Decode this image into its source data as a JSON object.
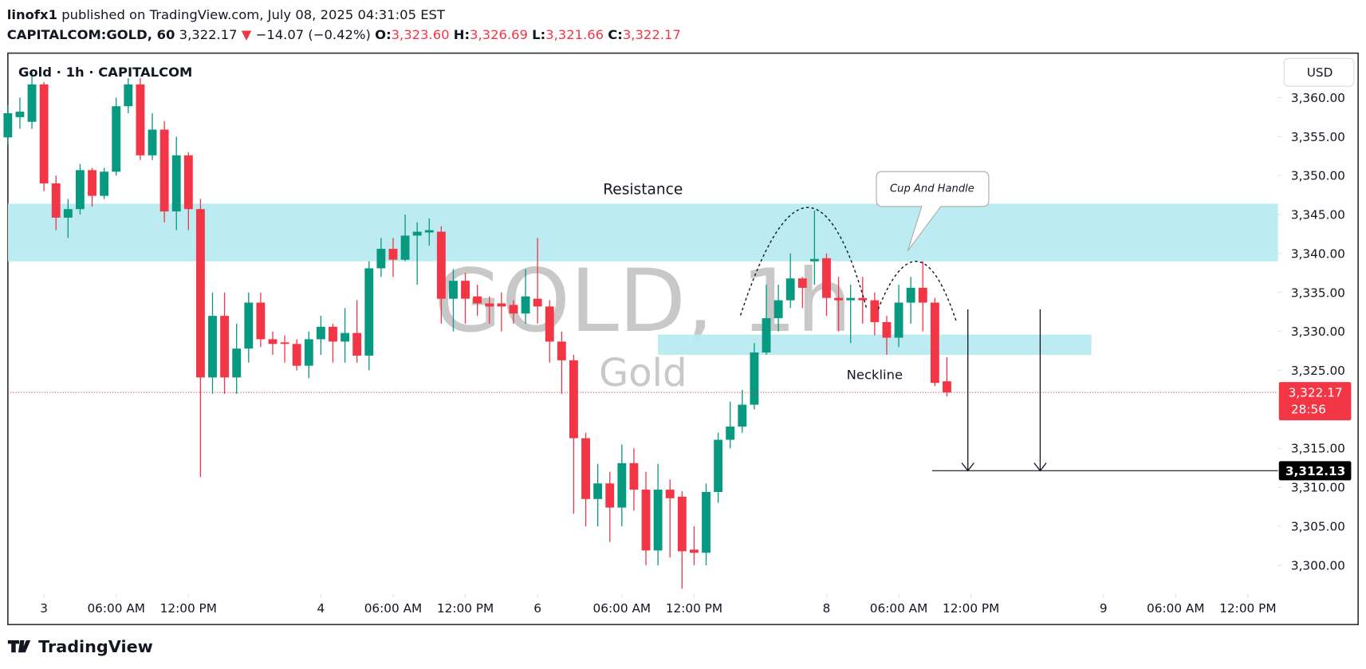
{
  "header": {
    "author": "linofx1",
    "published": "published on TradingView.com, July 08, 2025 04:31:05 EST",
    "symbol": "CAPITALCOM:GOLD, 60",
    "price": "3,322.17",
    "arrow": "▼",
    "change": "−14.07 (−0.42%)",
    "o_label": "O:",
    "o": "3,323.60",
    "h_label": "H:",
    "h": "3,326.69",
    "l_label": "L:",
    "l": "3,321.66",
    "c_label": "C:",
    "c": "3,322.17"
  },
  "footer": {
    "brand": "TradingView"
  },
  "chart_data": {
    "type": "candlestick",
    "title": "Gold · 1h · CAPITALCOM",
    "currency": "USD",
    "watermark": "GOLD, 1h",
    "watermark_sub": "Gold",
    "up_color": "#089981",
    "down_color": "#f23645",
    "x": [
      0,
      1,
      2,
      3,
      4,
      5,
      6,
      7,
      8,
      9,
      10,
      11,
      12,
      13,
      14,
      15,
      16,
      17,
      18,
      19,
      20,
      21,
      22,
      23,
      24,
      25,
      26,
      27,
      28,
      29,
      30,
      31,
      32,
      33,
      34,
      35,
      36,
      37,
      38,
      39,
      40,
      41,
      42,
      43,
      44,
      45,
      46,
      47,
      48,
      49,
      50,
      51,
      52,
      53,
      54,
      55,
      56,
      57,
      58,
      59,
      60,
      61,
      62,
      63,
      64,
      65,
      66,
      67,
      68,
      69,
      70,
      71,
      72,
      73,
      74,
      75,
      76,
      77,
      78
    ],
    "open": [
      3354.9,
      3357.5,
      3356.9,
      3361.7,
      3349,
      3344.6,
      3345.7,
      3350.7,
      3347.4,
      3350.5,
      3358.9,
      3361.7,
      3352.6,
      3355.9,
      3345.4,
      3352.6,
      3345.7,
      3324.1,
      3332,
      3324.1,
      3327.8,
      3333.7,
      3329,
      3328.6,
      3328.4,
      3325.6,
      3329,
      3330.6,
      3328.7,
      3329.8,
      3326.9,
      3338.1,
      3340.6,
      3339.2,
      3342.3,
      3342.7,
      3342.8,
      3334.2,
      3336.5,
      3334.5,
      3333.6,
      3333.6,
      3333.4,
      3332.3,
      3334.2,
      3333.2,
      3328.7,
      3326.3,
      3316.3,
      3308.5,
      3310.5,
      3307.4,
      3313.1,
      3309.7,
      3301.9,
      3309.7,
      3308.8,
      3302,
      3301.6,
      3309.4,
      3316.1,
      3317.8,
      3320.6,
      3327.3,
      3331.7,
      3334,
      3336.8,
      3339,
      3339.4,
      3334.3,
      3334,
      3334.3,
      3334,
      3331.2,
      3329.2,
      3333.7,
      3335.6,
      3333.7,
      3323.6
    ],
    "high": [
      3359,
      3360,
      3363.5,
      3362,
      3350,
      3347,
      3351.5,
      3351,
      3351,
      3360,
      3362.5,
      3362.5,
      3358,
      3357,
      3355,
      3353,
      3347,
      3335,
      3335,
      3331,
      3335,
      3335,
      3330,
      3329.5,
      3329,
      3330,
      3332,
      3331,
      3333,
      3334,
      3339,
      3342,
      3342,
      3345,
      3344,
      3344.5,
      3343.5,
      3338,
      3337.5,
      3336,
      3334.5,
      3335,
      3334,
      3338,
      3342,
      3334,
      3330,
      3327,
      3317,
      3313,
      3312,
      3315.5,
      3315,
      3312,
      3313,
      3311,
      3309.5,
      3305,
      3310.5,
      3317,
      3321,
      3322.5,
      3328.5,
      3336,
      3336,
      3340,
      3337,
      3345.5,
      3340,
      3337,
      3336,
      3337,
      3335,
      3332,
      3336,
      3337,
      3339,
      3334.3,
      3326.69
    ],
    "low": [
      3354,
      3356,
      3356,
      3348,
      3343,
      3342,
      3345,
      3346,
      3347,
      3350,
      3358,
      3352,
      3352,
      3344,
      3343,
      3343,
      3311.3,
      3322,
      3322,
      3322,
      3326,
      3328,
      3327,
      3326,
      3325,
      3324,
      3327,
      3326,
      3326,
      3326,
      3325,
      3337,
      3337,
      3339,
      3336,
      3341,
      3331,
      3330,
      3331,
      3332,
      3331,
      3330,
      3331,
      3331,
      3331,
      3326,
      3322,
      3306.6,
      3305,
      3305,
      3303,
      3305,
      3307,
      3300,
      3300,
      3301,
      3297,
      3300,
      3300,
      3308,
      3315,
      3317,
      3320,
      3327,
      3330,
      3333,
      3333,
      3336,
      3332,
      3330,
      3328.5,
      3331,
      3329.5,
      3327,
      3328,
      3331,
      3330,
      3323,
      3321.66
    ],
    "close": [
      3358,
      3358.2,
      3361.7,
      3349,
      3344.6,
      3345.7,
      3350.7,
      3347.4,
      3350.5,
      3358.9,
      3361.7,
      3352.6,
      3355.9,
      3345.4,
      3352.6,
      3345.7,
      3324.1,
      3332,
      3324.1,
      3327.8,
      3333.7,
      3329,
      3328.4,
      3328.4,
      3325.6,
      3329,
      3330.6,
      3328.7,
      3329.8,
      3326.9,
      3338.1,
      3340.6,
      3339.2,
      3342.3,
      3342.8,
      3343,
      3334.2,
      3336.5,
      3334.2,
      3333.6,
      3333.2,
      3333.2,
      3332.3,
      3334.5,
      3333.2,
      3328.7,
      3326.3,
      3316.3,
      3308.5,
      3310.5,
      3307.4,
      3313.1,
      3309.7,
      3301.9,
      3309.7,
      3308.6,
      3301.8,
      3301.6,
      3309.4,
      3316.1,
      3317.8,
      3320.6,
      3327.3,
      3331.7,
      3334,
      3336.8,
      3335.6,
      3339.3,
      3334.3,
      3334,
      3334.3,
      3334,
      3331.2,
      3329.2,
      3333.7,
      3335.6,
      3333.7,
      3323.4,
      3322.17
    ],
    "xlim": [
      0,
      105.5
    ],
    "xticks": [
      {
        "value": 3,
        "label": "3"
      },
      {
        "value": 9,
        "label": "06:00 AM"
      },
      {
        "value": 15,
        "label": "12:00 PM"
      },
      {
        "value": 26,
        "label": "4"
      },
      {
        "value": 32,
        "label": "06:00 AM"
      },
      {
        "value": 38,
        "label": "12:00 PM"
      },
      {
        "value": 44,
        "label": "6"
      },
      {
        "value": 51,
        "label": "06:00 AM"
      },
      {
        "value": 57,
        "label": "12:00 PM"
      },
      {
        "value": 68,
        "label": "8"
      },
      {
        "value": 74,
        "label": "06:00 AM"
      },
      {
        "value": 80,
        "label": "12:00 PM"
      },
      {
        "value": 91,
        "label": "9"
      },
      {
        "value": 97,
        "label": "06:00 AM"
      },
      {
        "value": 103,
        "label": "12:00 PM"
      }
    ],
    "ylim": [
      3296.3,
      3365.6
    ],
    "yticks": [
      {
        "value": 3300,
        "label": "3,300.00"
      },
      {
        "value": 3305,
        "label": "3,305.00"
      },
      {
        "value": 3310,
        "label": "3,310.00"
      },
      {
        "value": 3315,
        "label": "3,315.00"
      },
      {
        "value": 3325,
        "label": "3,325.00"
      },
      {
        "value": 3330,
        "label": "3,330.00"
      },
      {
        "value": 3335,
        "label": "3,335.00"
      },
      {
        "value": 3340,
        "label": "3,340.00"
      },
      {
        "value": 3345,
        "label": "3,345.00"
      },
      {
        "value": 3350,
        "label": "3,350.00"
      },
      {
        "value": 3355,
        "label": "3,355.00"
      },
      {
        "value": 3360,
        "label": "3,360.00"
      }
    ],
    "zones": [
      {
        "label": "Resistance",
        "x": [
          0,
          105.5
        ],
        "y": [
          3339,
          3346.4
        ],
        "color": "#b8eaf0"
      },
      {
        "label": "Neckline",
        "x": [
          54,
          90
        ],
        "y": [
          3327,
          3329.6
        ],
        "color": "#b8eaf0"
      }
    ],
    "callout": "Cup And Handle",
    "last_price": {
      "value": 3322.17,
      "label": "3,322.17"
    },
    "countdown": "28:56",
    "target": {
      "value": 3312.13,
      "label": "3,312.13"
    }
  }
}
